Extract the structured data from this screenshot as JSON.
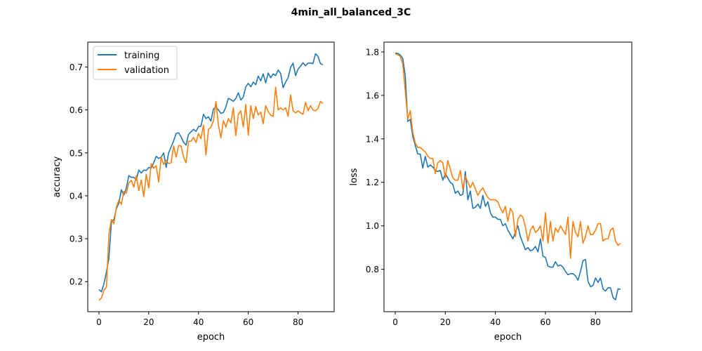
{
  "figure": {
    "suptitle": "4min_all_balanced_3C"
  },
  "chart_data": [
    {
      "type": "line",
      "xlabel": "epoch",
      "ylabel": "accuracy",
      "xlim": [
        -4.5,
        94.5
      ],
      "ylim": [
        0.13,
        0.758
      ],
      "xticks": [
        0,
        20,
        40,
        60,
        80
      ],
      "yticks": [
        0.2,
        0.3,
        0.4,
        0.5,
        0.6,
        0.7
      ],
      "ytick_labels": [
        "0.2",
        "0.3",
        "0.4",
        "0.5",
        "0.6",
        "0.7"
      ],
      "grid": false,
      "legend": "upper left",
      "series": [
        {
          "name": "training",
          "color": "#1f77b4",
          "x": [
            0,
            1,
            2,
            3,
            4,
            5,
            6,
            7,
            8,
            9,
            10,
            11,
            12,
            13,
            14,
            15,
            16,
            17,
            18,
            19,
            20,
            21,
            22,
            23,
            24,
            25,
            26,
            27,
            28,
            29,
            30,
            31,
            32,
            33,
            34,
            35,
            36,
            37,
            38,
            39,
            40,
            41,
            42,
            43,
            44,
            45,
            46,
            47,
            48,
            49,
            50,
            51,
            52,
            53,
            54,
            55,
            56,
            57,
            58,
            59,
            60,
            61,
            62,
            63,
            64,
            65,
            66,
            67,
            68,
            69,
            70,
            71,
            72,
            73,
            74,
            75,
            76,
            77,
            78,
            79,
            80,
            81,
            82,
            83,
            84,
            85,
            86,
            87,
            88,
            89,
            90
          ],
          "y": [
            0.182,
            0.176,
            0.195,
            0.222,
            0.255,
            0.338,
            0.345,
            0.37,
            0.383,
            0.414,
            0.402,
            0.418,
            0.447,
            0.443,
            0.443,
            0.437,
            0.46,
            0.453,
            0.46,
            0.459,
            0.466,
            0.465,
            0.477,
            0.492,
            0.487,
            0.49,
            0.5,
            0.466,
            0.5,
            0.514,
            0.528,
            0.545,
            0.547,
            0.537,
            0.525,
            0.518,
            0.543,
            0.549,
            0.555,
            0.55,
            0.561,
            0.562,
            0.59,
            0.58,
            0.584,
            0.574,
            0.602,
            0.607,
            0.6,
            0.592,
            0.594,
            0.607,
            0.627,
            0.624,
            0.62,
            0.627,
            0.64,
            0.623,
            0.63,
            0.654,
            0.662,
            0.654,
            0.665,
            0.659,
            0.679,
            0.668,
            0.684,
            0.663,
            0.686,
            0.675,
            0.684,
            0.68,
            0.693,
            0.685,
            0.652,
            0.665,
            0.675,
            0.699,
            0.709,
            0.68,
            0.695,
            0.702,
            0.71,
            0.703,
            0.709,
            0.709,
            0.708,
            0.731,
            0.725,
            0.708,
            0.705
          ]
        },
        {
          "name": "validation",
          "color": "#ff7f0e",
          "x": [
            0,
            1,
            2,
            3,
            4,
            5,
            6,
            7,
            8,
            9,
            10,
            11,
            12,
            13,
            14,
            15,
            16,
            17,
            18,
            19,
            20,
            21,
            22,
            23,
            24,
            25,
            26,
            27,
            28,
            29,
            30,
            31,
            32,
            33,
            34,
            35,
            36,
            37,
            38,
            39,
            40,
            41,
            42,
            43,
            44,
            45,
            46,
            47,
            48,
            49,
            50,
            51,
            52,
            53,
            54,
            55,
            56,
            57,
            58,
            59,
            60,
            61,
            62,
            63,
            64,
            65,
            66,
            67,
            68,
            69,
            70,
            71,
            72,
            73,
            74,
            75,
            76,
            77,
            78,
            79,
            80,
            81,
            82,
            83,
            84,
            85,
            86,
            87,
            88,
            89,
            90
          ],
          "y": [
            0.156,
            0.162,
            0.18,
            0.187,
            0.31,
            0.345,
            0.335,
            0.373,
            0.39,
            0.38,
            0.41,
            0.406,
            0.43,
            0.436,
            0.42,
            0.447,
            0.412,
            0.437,
            0.398,
            0.45,
            0.418,
            0.475,
            0.464,
            0.47,
            0.432,
            0.49,
            0.473,
            0.483,
            0.475,
            0.477,
            0.516,
            0.49,
            0.517,
            0.516,
            0.49,
            0.477,
            0.527,
            0.527,
            0.536,
            0.524,
            0.545,
            0.533,
            0.565,
            0.495,
            0.555,
            0.56,
            0.575,
            0.62,
            0.565,
            0.535,
            0.575,
            0.56,
            0.58,
            0.57,
            0.605,
            0.54,
            0.59,
            0.598,
            0.56,
            0.613,
            0.541,
            0.61,
            0.58,
            0.608,
            0.588,
            0.595,
            0.568,
            0.61,
            0.596,
            0.588,
            0.585,
            0.653,
            0.6,
            0.605,
            0.6,
            0.605,
            0.585,
            0.635,
            0.598,
            0.593,
            0.598,
            0.593,
            0.59,
            0.618,
            0.598,
            0.61,
            0.6,
            0.598,
            0.603,
            0.62,
            0.615
          ]
        }
      ]
    },
    {
      "type": "line",
      "xlabel": "epoch",
      "ylabel": "loss",
      "xlim": [
        -4.5,
        94.5
      ],
      "ylim": [
        0.605,
        1.845
      ],
      "xticks": [
        0,
        20,
        40,
        60,
        80
      ],
      "yticks": [
        0.8,
        1.0,
        1.2,
        1.4,
        1.6,
        1.8
      ],
      "ytick_labels": [
        "0.8",
        "1.0",
        "1.2",
        "1.4",
        "1.6",
        "1.8"
      ],
      "grid": false,
      "legend": "none",
      "series": [
        {
          "name": "training",
          "color": "#1f77b4",
          "x": [
            0,
            1,
            2,
            3,
            4,
            5,
            6,
            7,
            8,
            9,
            10,
            11,
            12,
            13,
            14,
            15,
            16,
            17,
            18,
            19,
            20,
            21,
            22,
            23,
            24,
            25,
            26,
            27,
            28,
            29,
            30,
            31,
            32,
            33,
            34,
            35,
            36,
            37,
            38,
            39,
            40,
            41,
            42,
            43,
            44,
            45,
            46,
            47,
            48,
            49,
            50,
            51,
            52,
            53,
            54,
            55,
            56,
            57,
            58,
            59,
            60,
            61,
            62,
            63,
            64,
            65,
            66,
            67,
            68,
            69,
            70,
            71,
            72,
            73,
            74,
            75,
            76,
            77,
            78,
            79,
            80,
            81,
            82,
            83,
            84,
            85,
            86,
            87,
            88,
            89,
            90
          ],
          "y": [
            1.795,
            1.793,
            1.786,
            1.77,
            1.69,
            1.48,
            1.49,
            1.41,
            1.37,
            1.33,
            1.33,
            1.265,
            1.32,
            1.27,
            1.28,
            1.27,
            1.255,
            1.25,
            1.255,
            1.21,
            1.24,
            1.22,
            1.2,
            1.19,
            1.15,
            1.16,
            1.14,
            1.145,
            1.25,
            1.12,
            1.16,
            1.08,
            1.085,
            1.1,
            1.08,
            1.14,
            1.09,
            1.11,
            1.06,
            1.04,
            1.04,
            1.03,
            1.03,
            1.0,
            1.01,
            0.98,
            0.96,
            0.94,
            0.97,
            1.0,
            0.95,
            0.92,
            0.89,
            0.9,
            0.885,
            0.89,
            0.905,
            0.88,
            0.94,
            0.86,
            0.855,
            0.815,
            0.81,
            0.81,
            0.835,
            0.815,
            0.82,
            0.81,
            0.79,
            0.775,
            0.78,
            0.78,
            0.77,
            0.75,
            0.79,
            0.84,
            0.845,
            0.745,
            0.72,
            0.725,
            0.76,
            0.74,
            0.76,
            0.71,
            0.7,
            0.715,
            0.715,
            0.67,
            0.66,
            0.71,
            0.708
          ]
        },
        {
          "name": "validation",
          "color": "#ff7f0e",
          "x": [
            0,
            1,
            2,
            3,
            4,
            5,
            6,
            7,
            8,
            9,
            10,
            11,
            12,
            13,
            14,
            15,
            16,
            17,
            18,
            19,
            20,
            21,
            22,
            23,
            24,
            25,
            26,
            27,
            28,
            29,
            30,
            31,
            32,
            33,
            34,
            35,
            36,
            37,
            38,
            39,
            40,
            41,
            42,
            43,
            44,
            45,
            46,
            47,
            48,
            49,
            50,
            51,
            52,
            53,
            54,
            55,
            56,
            57,
            58,
            59,
            60,
            61,
            62,
            63,
            64,
            65,
            66,
            67,
            68,
            69,
            70,
            71,
            72,
            73,
            74,
            75,
            76,
            77,
            78,
            79,
            80,
            81,
            82,
            83,
            84,
            85,
            86,
            87,
            88,
            89,
            90
          ],
          "y": [
            1.79,
            1.787,
            1.78,
            1.745,
            1.62,
            1.49,
            1.53,
            1.43,
            1.38,
            1.36,
            1.36,
            1.35,
            1.34,
            1.32,
            1.31,
            1.31,
            1.24,
            1.29,
            1.3,
            1.29,
            1.22,
            1.3,
            1.26,
            1.22,
            1.21,
            1.21,
            1.255,
            1.17,
            1.23,
            1.2,
            1.175,
            1.2,
            1.17,
            1.14,
            1.16,
            1.175,
            1.15,
            1.13,
            1.12,
            1.12,
            1.12,
            1.11,
            1.08,
            1.06,
            1.09,
            1.02,
            1.08,
            1.06,
            0.95,
            1.03,
            1.05,
            1.04,
            0.995,
            0.93,
            0.98,
            1.0,
            0.97,
            0.98,
            1.0,
            0.93,
            1.06,
            0.92,
            1.02,
            0.93,
            0.99,
            0.97,
            1.0,
            0.98,
            0.96,
            1.04,
            0.85,
            1.02,
            0.97,
            0.95,
            1.02,
            0.92,
            0.95,
            1.0,
            0.96,
            0.96,
            0.98,
            1.01,
            1.01,
            0.93,
            0.94,
            0.94,
            0.98,
            0.99,
            0.93,
            0.91,
            0.92
          ]
        }
      ]
    }
  ]
}
